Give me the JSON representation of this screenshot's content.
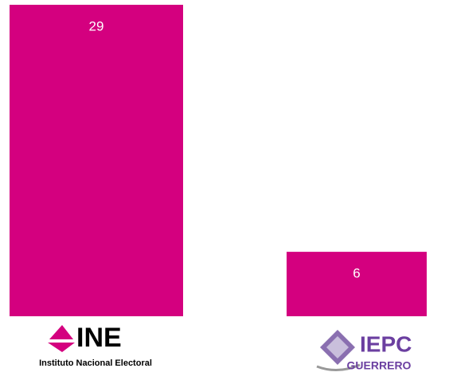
{
  "chart_data": {
    "type": "bar",
    "categories": [
      "INE",
      "IEPC"
    ],
    "category_subtitles": [
      "Instituto Nacional Electoral",
      "GUERRERO"
    ],
    "values": [
      29,
      6
    ],
    "color": "#d4007f",
    "ylim": [
      0,
      29
    ]
  }
}
